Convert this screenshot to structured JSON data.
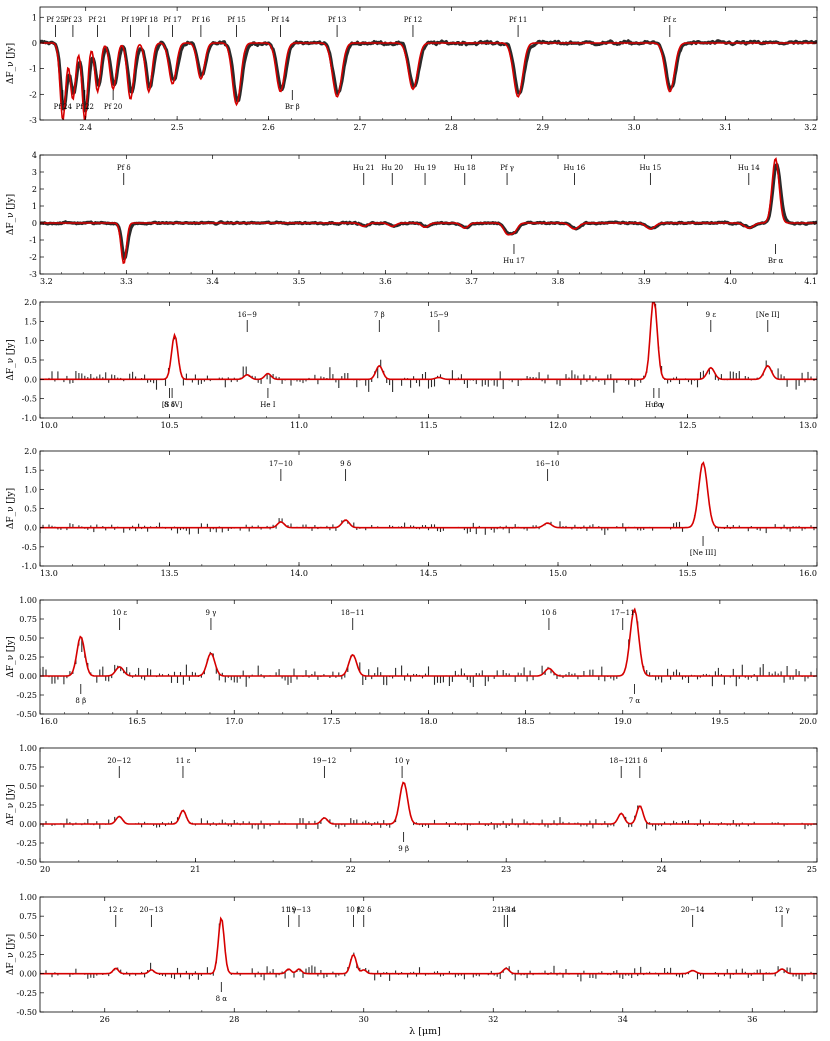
{
  "figure": {
    "xlabel": "λ [μm]",
    "ylabel": "ΔF_ν [Jy]"
  },
  "colors": {
    "data": "#2b2b2b",
    "model": "#d60000",
    "axes": "#000000"
  },
  "chart_data": [
    {
      "type": "line",
      "series": [
        {
          "values": []
        },
        {
          "values": []
        }
      ],
      "xlim": [
        2.35,
        3.2
      ],
      "ylim": [
        -3,
        1.4
      ],
      "xticks": [
        2.4,
        2.5,
        2.6,
        2.7,
        2.8,
        2.9,
        3.0,
        3.1,
        3.2
      ],
      "yticks": [
        -3,
        -2,
        -1,
        0,
        1
      ],
      "lines_above": [
        {
          "label": "Pf 25",
          "x": 2.367
        },
        {
          "label": "Pf 23",
          "x": 2.386
        },
        {
          "label": "Pf 21",
          "x": 2.413
        },
        {
          "label": "Pf 19",
          "x": 2.449
        },
        {
          "label": "Pf 18",
          "x": 2.469
        },
        {
          "label": "Pf 17",
          "x": 2.495
        },
        {
          "label": "Pf 16",
          "x": 2.526
        },
        {
          "label": "Pf 15",
          "x": 2.565
        },
        {
          "label": "Pf 14",
          "x": 2.613
        },
        {
          "label": "Pf 13",
          "x": 2.675
        },
        {
          "label": "Pf 12",
          "x": 2.758
        },
        {
          "label": "Pf 11",
          "x": 2.873
        },
        {
          "label": "Pf ε",
          "x": 3.039
        }
      ],
      "lines_below": [
        {
          "label": "Pf 24",
          "x": 2.375
        },
        {
          "label": "Pf 22",
          "x": 2.399
        },
        {
          "label": "Pf 20",
          "x": 2.43
        },
        {
          "label": "Br β",
          "x": 2.626
        }
      ],
      "model_features": [
        {
          "x": 2.375,
          "a": -3.0,
          "s": 0.003
        },
        {
          "x": 2.386,
          "a": -2.2,
          "s": 0.003
        },
        {
          "x": 2.399,
          "a": -3.0,
          "s": 0.003
        },
        {
          "x": 2.413,
          "a": -1.9,
          "s": 0.003
        },
        {
          "x": 2.43,
          "a": -1.8,
          "s": 0.0035
        },
        {
          "x": 2.449,
          "a": -2.2,
          "s": 0.0035
        },
        {
          "x": 2.469,
          "a": -1.9,
          "s": 0.0035
        },
        {
          "x": 2.495,
          "a": -1.6,
          "s": 0.004
        },
        {
          "x": 2.526,
          "a": -1.4,
          "s": 0.004
        },
        {
          "x": 2.565,
          "a": -2.4,
          "s": 0.0045
        },
        {
          "x": 2.613,
          "a": -1.9,
          "s": 0.0045
        },
        {
          "x": 2.675,
          "a": -2.1,
          "s": 0.005
        },
        {
          "x": 2.758,
          "a": -1.8,
          "s": 0.005
        },
        {
          "x": 2.873,
          "a": -2.1,
          "s": 0.005
        },
        {
          "x": 3.039,
          "a": -1.9,
          "s": 0.005
        }
      ],
      "noise": 0.12,
      "style": "band"
    },
    {
      "type": "line",
      "series": [
        {
          "values": []
        },
        {
          "values": []
        }
      ],
      "xlim": [
        3.2,
        4.1
      ],
      "ylim": [
        -3,
        4
      ],
      "xticks": [
        3.2,
        3.3,
        3.4,
        3.5,
        3.6,
        3.7,
        3.8,
        3.9,
        4.0,
        4.1
      ],
      "yticks": [
        -3,
        -2,
        -1,
        0,
        1,
        2,
        3,
        4
      ],
      "lines_above": [
        {
          "label": "Pf δ",
          "x": 3.297
        },
        {
          "label": "Hu 21",
          "x": 3.575
        },
        {
          "label": "Hu 20",
          "x": 3.608
        },
        {
          "label": "Hu 19",
          "x": 3.646
        },
        {
          "label": "Hu 18",
          "x": 3.692
        },
        {
          "label": "Pf γ",
          "x": 3.741
        },
        {
          "label": "Hu 16",
          "x": 3.819
        },
        {
          "label": "Hu 15",
          "x": 3.907
        },
        {
          "label": "Hu 14",
          "x": 4.021
        }
      ],
      "lines_below": [
        {
          "label": "Hu 17",
          "x": 3.749
        },
        {
          "label": "Br α",
          "x": 4.052
        }
      ],
      "model_features": [
        {
          "x": 3.297,
          "a": -2.4,
          "s": 0.003
        },
        {
          "x": 3.575,
          "a": -0.2,
          "s": 0.004
        },
        {
          "x": 3.608,
          "a": -0.2,
          "s": 0.004
        },
        {
          "x": 3.646,
          "a": -0.25,
          "s": 0.004
        },
        {
          "x": 3.692,
          "a": -0.3,
          "s": 0.004
        },
        {
          "x": 3.741,
          "a": -0.6,
          "s": 0.004
        },
        {
          "x": 3.749,
          "a": -0.5,
          "s": 0.004
        },
        {
          "x": 3.819,
          "a": -0.35,
          "s": 0.005
        },
        {
          "x": 3.907,
          "a": -0.35,
          "s": 0.005
        },
        {
          "x": 4.021,
          "a": -0.3,
          "s": 0.005
        },
        {
          "x": 4.052,
          "a": 3.8,
          "s": 0.004
        }
      ],
      "noise": 0.1,
      "style": "band"
    },
    {
      "type": "line",
      "series": [
        {
          "values": []
        },
        {
          "values": []
        }
      ],
      "xlim": [
        10.0,
        13.0
      ],
      "ylim": [
        -1.0,
        2.0
      ],
      "xticks": [
        10.0,
        10.5,
        11.0,
        11.5,
        12.0,
        12.5,
        13.0
      ],
      "yticks": [
        -1.0,
        -0.5,
        0.0,
        0.5,
        1.0,
        1.5,
        2.0
      ],
      "lines_above": [
        {
          "label": "16−9",
          "x": 10.8
        },
        {
          "label": "7 β",
          "x": 11.31
        },
        {
          "label": "15−9",
          "x": 11.54
        },
        {
          "label": "9 ε",
          "x": 12.59
        },
        {
          "label": "[Ne II]",
          "x": 12.81
        }
      ],
      "lines_below": [
        {
          "label": "8 δ",
          "x": 10.5
        },
        {
          "label": "[S IV]",
          "x": 10.51
        },
        {
          "label": "He I",
          "x": 10.88
        },
        {
          "label": "Hu α",
          "x": 12.37
        },
        {
          "label": "8 γ",
          "x": 12.39
        }
      ],
      "model_features": [
        {
          "x": 10.52,
          "a": 1.15,
          "s": 0.012
        },
        {
          "x": 10.8,
          "a": 0.12,
          "s": 0.012
        },
        {
          "x": 10.88,
          "a": 0.15,
          "s": 0.012
        },
        {
          "x": 11.31,
          "a": 0.35,
          "s": 0.013
        },
        {
          "x": 11.54,
          "a": 0.05,
          "s": 0.013
        },
        {
          "x": 12.37,
          "a": 2.1,
          "s": 0.013
        },
        {
          "x": 12.59,
          "a": 0.3,
          "s": 0.014
        },
        {
          "x": 12.81,
          "a": 0.35,
          "s": 0.014
        }
      ],
      "noise": 0.18,
      "style": "bars"
    },
    {
      "type": "line",
      "series": [
        {
          "values": []
        },
        {
          "values": []
        }
      ],
      "xlim": [
        13.0,
        16.0
      ],
      "ylim": [
        -1.0,
        2.0
      ],
      "xticks": [
        13.0,
        13.5,
        14.0,
        14.5,
        15.0,
        15.5,
        16.0
      ],
      "yticks": [
        -1.0,
        -0.5,
        0.0,
        0.5,
        1.0,
        1.5,
        2.0
      ],
      "lines_above": [
        {
          "label": "17−10",
          "x": 13.93
        },
        {
          "label": "9 δ",
          "x": 14.18
        },
        {
          "label": "16−10",
          "x": 14.96
        }
      ],
      "lines_below": [
        {
          "label": "[Ne III]",
          "x": 15.56
        }
      ],
      "model_features": [
        {
          "x": 13.93,
          "a": 0.15,
          "s": 0.013
        },
        {
          "x": 14.18,
          "a": 0.2,
          "s": 0.014
        },
        {
          "x": 14.96,
          "a": 0.12,
          "s": 0.015
        },
        {
          "x": 15.56,
          "a": 1.7,
          "s": 0.017
        }
      ],
      "noise": 0.1,
      "style": "bars"
    },
    {
      "type": "line",
      "series": [
        {
          "values": []
        },
        {
          "values": []
        }
      ],
      "xlim": [
        16.0,
        20.0
      ],
      "ylim": [
        -0.5,
        1.0
      ],
      "xticks": [
        16.0,
        16.5,
        17.0,
        17.5,
        18.0,
        18.5,
        19.0,
        19.5,
        20.0
      ],
      "yticks": [
        -0.5,
        -0.25,
        0.0,
        0.25,
        0.5,
        0.75,
        1.0
      ],
      "lines_above": [
        {
          "label": "10 ε",
          "x": 16.41
        },
        {
          "label": "9 γ",
          "x": 16.88
        },
        {
          "label": "18−11",
          "x": 17.61
        },
        {
          "label": "10 δ",
          "x": 18.62
        },
        {
          "label": "17−11",
          "x": 19.0
        }
      ],
      "lines_below": [
        {
          "label": "8 β",
          "x": 16.21
        },
        {
          "label": "7 α",
          "x": 19.06
        }
      ],
      "model_features": [
        {
          "x": 16.21,
          "a": 0.52,
          "s": 0.02
        },
        {
          "x": 16.41,
          "a": 0.12,
          "s": 0.02
        },
        {
          "x": 16.88,
          "a": 0.3,
          "s": 0.02
        },
        {
          "x": 17.61,
          "a": 0.28,
          "s": 0.02
        },
        {
          "x": 18.62,
          "a": 0.1,
          "s": 0.02
        },
        {
          "x": 19.06,
          "a": 0.88,
          "s": 0.022
        }
      ],
      "noise": 0.1,
      "style": "bars"
    },
    {
      "type": "line",
      "series": [
        {
          "values": []
        },
        {
          "values": []
        }
      ],
      "xlim": [
        20.0,
        25.0
      ],
      "ylim": [
        -0.5,
        1.0
      ],
      "xticks": [
        20,
        21,
        22,
        23,
        24,
        25
      ],
      "yticks": [
        -0.5,
        -0.25,
        0.0,
        0.25,
        0.5,
        0.75,
        1.0
      ],
      "lines_above": [
        {
          "label": "20−12",
          "x": 20.51
        },
        {
          "label": "11 ε",
          "x": 20.92
        },
        {
          "label": "19−12",
          "x": 21.83
        },
        {
          "label": "10 γ",
          "x": 22.33
        },
        {
          "label": "18−12",
          "x": 23.74
        },
        {
          "label": "11 δ",
          "x": 23.86
        }
      ],
      "lines_below": [
        {
          "label": "9 β",
          "x": 22.34
        }
      ],
      "model_features": [
        {
          "x": 20.51,
          "a": 0.1,
          "s": 0.02
        },
        {
          "x": 20.92,
          "a": 0.18,
          "s": 0.02
        },
        {
          "x": 21.83,
          "a": 0.08,
          "s": 0.02
        },
        {
          "x": 22.34,
          "a": 0.55,
          "s": 0.025
        },
        {
          "x": 23.74,
          "a": 0.14,
          "s": 0.02
        },
        {
          "x": 23.86,
          "a": 0.24,
          "s": 0.02
        }
      ],
      "noise": 0.05,
      "style": "bars"
    },
    {
      "type": "line",
      "series": [
        {
          "values": []
        },
        {
          "values": []
        }
      ],
      "xlim": [
        25.0,
        37.0
      ],
      "ylim": [
        -0.5,
        1.0
      ],
      "xticks": [
        26,
        28,
        30,
        32,
        34,
        36
      ],
      "yticks": [
        -0.5,
        -0.25,
        0.0,
        0.25,
        0.5,
        0.75,
        1.0
      ],
      "lines_above": [
        {
          "label": "12 ε",
          "x": 26.17
        },
        {
          "label": "20−13",
          "x": 26.72
        },
        {
          "label": "11 γ",
          "x": 28.84
        },
        {
          "label": "19−13",
          "x": 29.0
        },
        {
          "label": "10 β",
          "x": 29.84
        },
        {
          "label": "12 δ",
          "x": 30.0
        },
        {
          "label": "21−14",
          "x": 32.17
        },
        {
          "label": "13 ε",
          "x": 32.22
        },
        {
          "label": "20−14",
          "x": 35.08
        },
        {
          "label": "12 γ",
          "x": 36.46
        }
      ],
      "lines_below": [
        {
          "label": "8 α",
          "x": 27.8
        }
      ],
      "model_features": [
        {
          "x": 26.17,
          "a": 0.07,
          "s": 0.04
        },
        {
          "x": 26.72,
          "a": 0.05,
          "s": 0.04
        },
        {
          "x": 27.8,
          "a": 0.73,
          "s": 0.045
        },
        {
          "x": 28.84,
          "a": 0.06,
          "s": 0.04
        },
        {
          "x": 29.0,
          "a": 0.06,
          "s": 0.04
        },
        {
          "x": 29.84,
          "a": 0.25,
          "s": 0.045
        },
        {
          "x": 30.0,
          "a": 0.05,
          "s": 0.04
        },
        {
          "x": 32.2,
          "a": 0.07,
          "s": 0.045
        },
        {
          "x": 35.08,
          "a": 0.04,
          "s": 0.05
        },
        {
          "x": 36.46,
          "a": 0.06,
          "s": 0.05
        }
      ],
      "noise": 0.06,
      "style": "bars"
    }
  ]
}
